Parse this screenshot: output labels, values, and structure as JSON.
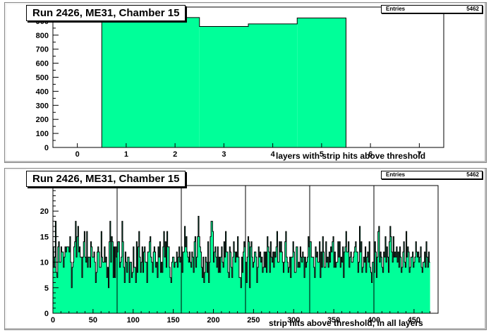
{
  "colors": {
    "fill": "#00ff99",
    "line": "#000000"
  },
  "chart_data": [
    {
      "type": "bar",
      "title": "Run 2426, ME31, Chamber 15",
      "stats_label": "Entries",
      "stats_value": "5462",
      "xlabel": "layers with strip hits above threshold",
      "ylabel": "",
      "xlim": [
        -0.5,
        7.5
      ],
      "ylim": [
        0,
        1000
      ],
      "xticks": [
        "0",
        "1",
        "2",
        "3",
        "4",
        "5",
        "6",
        "7"
      ],
      "yticks": [
        "0",
        "100",
        "200",
        "300",
        "400",
        "500",
        "600",
        "700",
        "800",
        "900"
      ],
      "categories": [
        "0",
        "1",
        "2",
        "3",
        "4",
        "5",
        "6",
        "7"
      ],
      "values": [
        0,
        935,
        925,
        862,
        880,
        922,
        0,
        0
      ]
    },
    {
      "type": "bar",
      "title": "Run 2426, ME31, Chamber 15",
      "stats_label": "Entries",
      "stats_value": "5462",
      "xlabel": "strip hits above threshold, in all layers",
      "ylabel": "",
      "xlim": [
        0,
        480
      ],
      "ylim": [
        0,
        25
      ],
      "xticks": [
        "0",
        "50",
        "100",
        "150",
        "200",
        "250",
        "300",
        "350",
        "400",
        "450"
      ],
      "yticks": [
        "0",
        "5",
        "10",
        "15",
        "20",
        "25"
      ],
      "vlines": [
        80,
        160,
        240,
        320,
        400
      ],
      "values": [
        13,
        9,
        11,
        18,
        8,
        7,
        13,
        14,
        10,
        10,
        13,
        12,
        12,
        9,
        11,
        13,
        12,
        13,
        13,
        13,
        12,
        15,
        10,
        5,
        9,
        10,
        13,
        14,
        18,
        11,
        15,
        17,
        12,
        13,
        11,
        11,
        7,
        11,
        14,
        16,
        11,
        10,
        16,
        9,
        11,
        11,
        9,
        14,
        13,
        11,
        11,
        12,
        10,
        6,
        8,
        12,
        13,
        12,
        9,
        9,
        16,
        11,
        10,
        10,
        13,
        10,
        11,
        7,
        9,
        5,
        14,
        18,
        10,
        15,
        14,
        7,
        13,
        7,
        13,
        11,
        12,
        14,
        14,
        9,
        10,
        11,
        18,
        14,
        9,
        6,
        12,
        10,
        8,
        11,
        11,
        6,
        10,
        10,
        7,
        8,
        13,
        9,
        9,
        6,
        14,
        8,
        13,
        16,
        11,
        8,
        10,
        13,
        8,
        12,
        13,
        10,
        10,
        6,
        12,
        12,
        14,
        15,
        11,
        10,
        8,
        12,
        13,
        12,
        9,
        10,
        7,
        13,
        11,
        14,
        8,
        10,
        8,
        13,
        16,
        11,
        14,
        9,
        16,
        13,
        13,
        9,
        7,
        6,
        10,
        11,
        11,
        9,
        10,
        10,
        12,
        9,
        11,
        13,
        10,
        11,
        13,
        8,
        12,
        12,
        17,
        13,
        15,
        12,
        11,
        10,
        12,
        10,
        9,
        12,
        11,
        8,
        14,
        15,
        9,
        11,
        15,
        19,
        15,
        13,
        12,
        9,
        7,
        11,
        6,
        8,
        11,
        10,
        8,
        14,
        6,
        10,
        15,
        18,
        18,
        16,
        10,
        12,
        13,
        11,
        9,
        13,
        8,
        11,
        8,
        11,
        13,
        10,
        9,
        14,
        11,
        16,
        12,
        12,
        8,
        7,
        13,
        12,
        9,
        7,
        11,
        14,
        12,
        10,
        12,
        11,
        15,
        11,
        7,
        7,
        5,
        11,
        8,
        12,
        14,
        13,
        10,
        6,
        11,
        15,
        14,
        5,
        13,
        14,
        11,
        9,
        10,
        12,
        12,
        11,
        6,
        9,
        13,
        11,
        12,
        10,
        11,
        8,
        9,
        12,
        9,
        12,
        8,
        15,
        13,
        12,
        8,
        14,
        11,
        10,
        12,
        9,
        12,
        11,
        13,
        16,
        10,
        10,
        14,
        12,
        14,
        12,
        10,
        8,
        10,
        14,
        16,
        11,
        10,
        8,
        9,
        11,
        7,
        11,
        11,
        14,
        12,
        8,
        8,
        13,
        13,
        9,
        10,
        9,
        13,
        11,
        10,
        12,
        11,
        7,
        11,
        9,
        10,
        11,
        15,
        13,
        14,
        14,
        11,
        11,
        11,
        9,
        7,
        13,
        11,
        12,
        10,
        10,
        14,
        7,
        12,
        9,
        15,
        12,
        9,
        9,
        14,
        10,
        11,
        9,
        12,
        10,
        13,
        12,
        14,
        15,
        9,
        12,
        9,
        10,
        10,
        14,
        11,
        14,
        9,
        11,
        10,
        13,
        7,
        12,
        13,
        16,
        12,
        12,
        14,
        9,
        11,
        12,
        10,
        10,
        11,
        12,
        13,
        14,
        12,
        12,
        8,
        10,
        17,
        12,
        14,
        8,
        9,
        11,
        10,
        13,
        8,
        11,
        12,
        10,
        14,
        9,
        8,
        6,
        10,
        10,
        8,
        14,
        12,
        7,
        11,
        16,
        17,
        10,
        12,
        11,
        9,
        8,
        12,
        11,
        15,
        10,
        13,
        11,
        8,
        14,
        17,
        15,
        12,
        10,
        15,
        11,
        12,
        11,
        13,
        10,
        12,
        9,
        13,
        11,
        8,
        9,
        12,
        14,
        10,
        9,
        16,
        11,
        13,
        12,
        8,
        9,
        11,
        11,
        12,
        9,
        10,
        11,
        14,
        12,
        11,
        12,
        10,
        11,
        13,
        9,
        8,
        10,
        10,
        12,
        9,
        14,
        11,
        9,
        12,
        10
      ]
    }
  ]
}
